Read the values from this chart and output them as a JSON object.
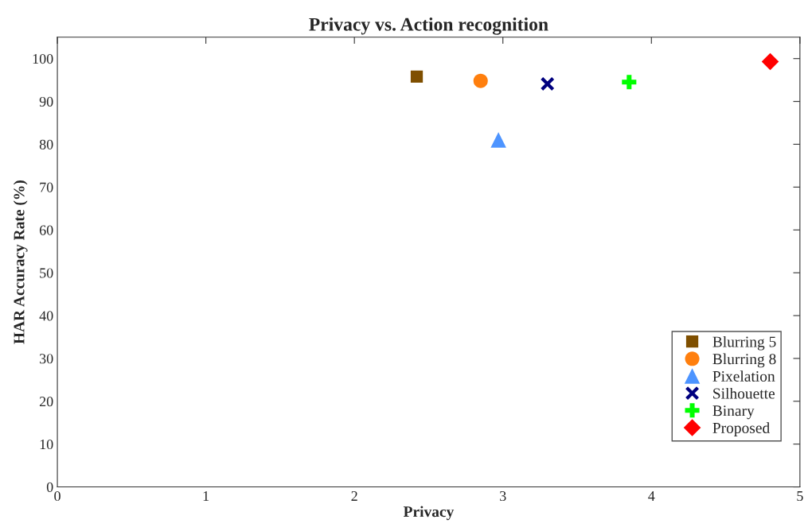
{
  "chart_data": {
    "type": "scatter",
    "title": "Privacy vs. Action recognition",
    "xlabel": "Privacy",
    "ylabel": "HAR Accuracy Rate (%)",
    "xlim": [
      0,
      5
    ],
    "xticks": [
      0,
      1,
      2,
      3,
      4,
      5
    ],
    "ylim": [
      0,
      105
    ],
    "yticks": [
      0,
      10,
      20,
      30,
      40,
      50,
      60,
      70,
      80,
      90,
      100
    ],
    "grid": false,
    "legend": "bottom right",
    "series": [
      {
        "name": "Blurring 5",
        "color": "#7f4f00",
        "marker": "square",
        "x": [
          2.42
        ],
        "values": [
          95.8
        ]
      },
      {
        "name": "Blurring 8",
        "color": "#ff7f0e",
        "marker": "circle",
        "x": [
          2.85
        ],
        "values": [
          94.8
        ]
      },
      {
        "name": "Pixelation",
        "color": "#4d94ff",
        "marker": "triangle",
        "x": [
          2.97
        ],
        "values": [
          81.0
        ]
      },
      {
        "name": "Silhouette",
        "color": "#00007f",
        "marker": "cross",
        "x": [
          3.3
        ],
        "values": [
          94.1
        ]
      },
      {
        "name": "Binary",
        "color": "#00ff00",
        "marker": "plus",
        "x": [
          3.85
        ],
        "values": [
          94.5
        ]
      },
      {
        "name": "Proposed",
        "color": "#ff0000",
        "marker": "diamond",
        "x": [
          4.8
        ],
        "values": [
          99.3
        ]
      }
    ]
  }
}
